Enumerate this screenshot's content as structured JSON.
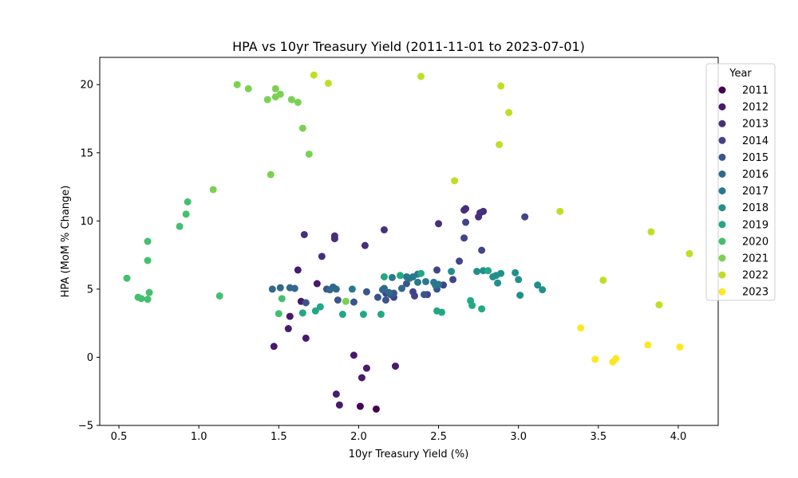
{
  "chart_data": {
    "type": "scatter",
    "title": "HPA vs 10yr Treasury Yield (2011-11-01 to 2023-07-01)",
    "xlabel": "10yr Treasury Yield (%)",
    "ylabel": "HPA (MoM % Change)",
    "xlim": [
      0.38,
      4.25
    ],
    "ylim": [
      -5,
      22
    ],
    "xticks": [
      0.5,
      1.0,
      1.5,
      2.0,
      2.5,
      3.0,
      3.5,
      4.0
    ],
    "xtick_labels": [
      "0.5",
      "1.0",
      "1.5",
      "2.0",
      "2.5",
      "3.0",
      "3.5",
      "4.0"
    ],
    "yticks": [
      -5,
      0,
      5,
      10,
      15,
      20
    ],
    "ytick_labels": [
      "−5",
      "0",
      "5",
      "10",
      "15",
      "20"
    ],
    "grid": false,
    "legend": {
      "title": "Year",
      "placement": "right, outside top"
    },
    "series": [
      {
        "name": "2011",
        "color": "#440154",
        "points": [
          [
            2.11,
            -3.8
          ],
          [
            2.01,
            -3.6
          ]
        ]
      },
      {
        "name": "2012",
        "color": "#481a6c",
        "points": [
          [
            1.97,
            0.15
          ],
          [
            2.02,
            -1.5
          ],
          [
            2.23,
            -0.65
          ],
          [
            2.05,
            -0.8
          ],
          [
            1.86,
            -2.7
          ],
          [
            1.88,
            -3.5
          ],
          [
            1.47,
            0.8
          ],
          [
            1.56,
            2.1
          ],
          [
            1.67,
            1.4
          ],
          [
            1.64,
            4.1
          ],
          [
            1.74,
            5.4
          ],
          [
            1.62,
            6.4
          ],
          [
            1.57,
            3.0
          ]
        ]
      },
      {
        "name": "2013",
        "color": "#472f7d",
        "points": [
          [
            1.85,
            8.9
          ],
          [
            2.04,
            8.2
          ],
          [
            1.85,
            8.7
          ],
          [
            1.66,
            9.0
          ],
          [
            1.77,
            7.4
          ],
          [
            2.16,
            9.35
          ],
          [
            2.5,
            9.8
          ],
          [
            2.66,
            10.8
          ],
          [
            2.67,
            10.9
          ],
          [
            2.75,
            10.3
          ],
          [
            2.76,
            10.6
          ],
          [
            2.78,
            10.7
          ]
        ]
      },
      {
        "name": "2014",
        "color": "#414487",
        "points": [
          [
            2.67,
            9.9
          ],
          [
            2.66,
            8.75
          ],
          [
            2.77,
            7.85
          ],
          [
            2.63,
            7.05
          ],
          [
            2.53,
            5.3
          ],
          [
            2.59,
            5.7
          ],
          [
            2.49,
            6.4
          ],
          [
            2.43,
            4.6
          ],
          [
            2.34,
            4.8
          ],
          [
            2.35,
            4.5
          ],
          [
            2.22,
            4.4
          ],
          [
            2.17,
            4.7
          ],
          [
            3.04,
            10.3
          ]
        ]
      },
      {
        "name": "2015",
        "color": "#39568c",
        "points": [
          [
            1.87,
            4.2
          ],
          [
            1.97,
            4.05
          ],
          [
            2.05,
            4.8
          ],
          [
            2.12,
            4.4
          ],
          [
            2.17,
            4.2
          ],
          [
            2.2,
            4.6
          ],
          [
            2.3,
            5.4
          ],
          [
            2.41,
            4.6
          ],
          [
            2.49,
            5.0
          ],
          [
            2.22,
            4.7
          ],
          [
            1.67,
            4.0
          ],
          [
            1.8,
            5.0
          ]
        ]
      },
      {
        "name": "2016",
        "color": "#31688e",
        "points": [
          [
            1.46,
            5.0
          ],
          [
            1.51,
            5.1
          ],
          [
            1.57,
            5.1
          ],
          [
            1.6,
            5.05
          ],
          [
            1.82,
            4.95
          ],
          [
            1.84,
            5.15
          ],
          [
            1.86,
            5.0
          ],
          [
            2.16,
            5.05
          ],
          [
            2.15,
            4.95
          ],
          [
            2.19,
            4.75
          ],
          [
            2.27,
            5.05
          ]
        ]
      },
      {
        "name": "2017",
        "color": "#2a788e",
        "points": [
          [
            1.96,
            5.0
          ],
          [
            2.32,
            5.8
          ],
          [
            2.34,
            5.9
          ],
          [
            2.37,
            6.1
          ],
          [
            2.48,
            5.3
          ],
          [
            2.47,
            5.5
          ],
          [
            2.42,
            5.55
          ],
          [
            2.5,
            5.35
          ],
          [
            2.37,
            5.5
          ],
          [
            2.3,
            5.9
          ],
          [
            2.21,
            5.85
          ]
        ]
      },
      {
        "name": "2018",
        "color": "#21908d",
        "points": [
          [
            2.58,
            6.3
          ],
          [
            2.86,
            6.0
          ],
          [
            2.84,
            5.9
          ],
          [
            2.87,
            5.45
          ],
          [
            2.98,
            6.2
          ],
          [
            3.0,
            5.7
          ],
          [
            3.12,
            5.3
          ],
          [
            3.15,
            4.95
          ],
          [
            3.01,
            4.55
          ],
          [
            2.89,
            6.15
          ],
          [
            2.74,
            6.3
          ],
          [
            2.78,
            6.35
          ]
        ]
      },
      {
        "name": "2019",
        "color": "#22a884",
        "points": [
          [
            2.7,
            4.15
          ],
          [
            2.71,
            3.8
          ],
          [
            2.77,
            3.55
          ],
          [
            2.16,
            5.9
          ],
          [
            2.26,
            6.0
          ],
          [
            2.39,
            6.15
          ],
          [
            2.81,
            6.35
          ],
          [
            2.49,
            3.4
          ],
          [
            2.52,
            3.3
          ],
          [
            2.14,
            3.15
          ],
          [
            2.03,
            3.15
          ],
          [
            1.9,
            3.15
          ],
          [
            1.76,
            3.7
          ],
          [
            1.73,
            3.4
          ],
          [
            1.65,
            3.25
          ]
        ]
      },
      {
        "name": "2020",
        "color": "#44bf70",
        "points": [
          [
            1.5,
            3.2
          ],
          [
            1.52,
            4.3
          ],
          [
            0.55,
            5.8
          ],
          [
            0.62,
            4.4
          ],
          [
            0.64,
            4.3
          ],
          [
            0.68,
            4.25
          ],
          [
            0.69,
            4.75
          ],
          [
            0.68,
            7.1
          ],
          [
            0.68,
            8.5
          ],
          [
            0.88,
            9.6
          ],
          [
            0.92,
            10.5
          ],
          [
            0.93,
            11.4
          ],
          [
            1.13,
            4.5
          ]
        ]
      },
      {
        "name": "2021",
        "color": "#7ad151",
        "points": [
          [
            1.09,
            12.3
          ],
          [
            1.45,
            13.4
          ],
          [
            1.43,
            18.9
          ],
          [
            1.48,
            19.1
          ],
          [
            1.51,
            19.3
          ],
          [
            1.58,
            18.9
          ],
          [
            1.62,
            18.7
          ],
          [
            1.65,
            16.8
          ],
          [
            1.69,
            14.9
          ],
          [
            1.48,
            19.7
          ],
          [
            1.31,
            19.7
          ],
          [
            1.24,
            20.0
          ],
          [
            1.92,
            4.1
          ]
        ]
      },
      {
        "name": "2022",
        "color": "#bddf26",
        "points": [
          [
            1.72,
            20.7
          ],
          [
            1.81,
            20.1
          ],
          [
            2.39,
            20.6
          ],
          [
            2.89,
            19.9
          ],
          [
            2.94,
            17.95
          ],
          [
            2.88,
            15.6
          ],
          [
            2.6,
            12.95
          ],
          [
            3.26,
            10.7
          ],
          [
            3.83,
            9.2
          ],
          [
            4.07,
            7.6
          ],
          [
            3.53,
            5.65
          ],
          [
            3.88,
            3.85
          ]
        ]
      },
      {
        "name": "2023",
        "color": "#fde725",
        "points": [
          [
            3.39,
            2.15
          ],
          [
            3.48,
            -0.15
          ],
          [
            3.61,
            -0.1
          ],
          [
            3.59,
            -0.35
          ],
          [
            3.81,
            0.9
          ],
          [
            4.01,
            0.75
          ]
        ]
      }
    ]
  }
}
